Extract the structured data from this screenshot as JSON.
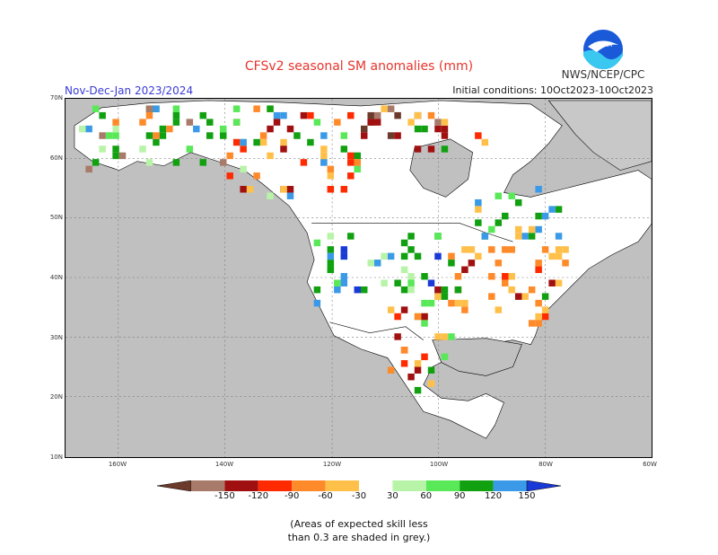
{
  "title": "CFSv2 seasonal SM anomalies (mm)",
  "season": "Nov-Dec-Jan 2023/2024",
  "initial_conditions": "Initial conditions: 10Oct2023-10Oct2023",
  "org": "NWS/NCEP/CPC",
  "logo_text": "NOAA",
  "lat_labels": [
    "70N",
    "60N",
    "50N",
    "40N",
    "30N",
    "20N",
    "10N"
  ],
  "lon_labels": [
    "160W",
    "140W",
    "120W",
    "100W",
    "80W",
    "60W"
  ],
  "legend": {
    "labels": [
      "-150",
      "-120",
      "-90",
      "-60",
      "-30",
      "30",
      "60",
      "90",
      "120",
      "150"
    ],
    "colors": [
      "#6b3a2a",
      "#a87a6a",
      "#a01010",
      "#ff2a00",
      "#ff8a2a",
      "#ffc04a",
      "#ffffff",
      "#b8f4a8",
      "#58e858",
      "#10a010",
      "#3a9ae8",
      "#1a3ad8"
    ]
  },
  "note_line1": "(Areas of expected skill less",
  "note_line2": "than 0.3 are shaded in grey.)",
  "colors": {
    "grey_mask": "#c0c0c0",
    "land": "#ffffff",
    "title": "#e8342c",
    "season": "#3b3bd6"
  }
}
